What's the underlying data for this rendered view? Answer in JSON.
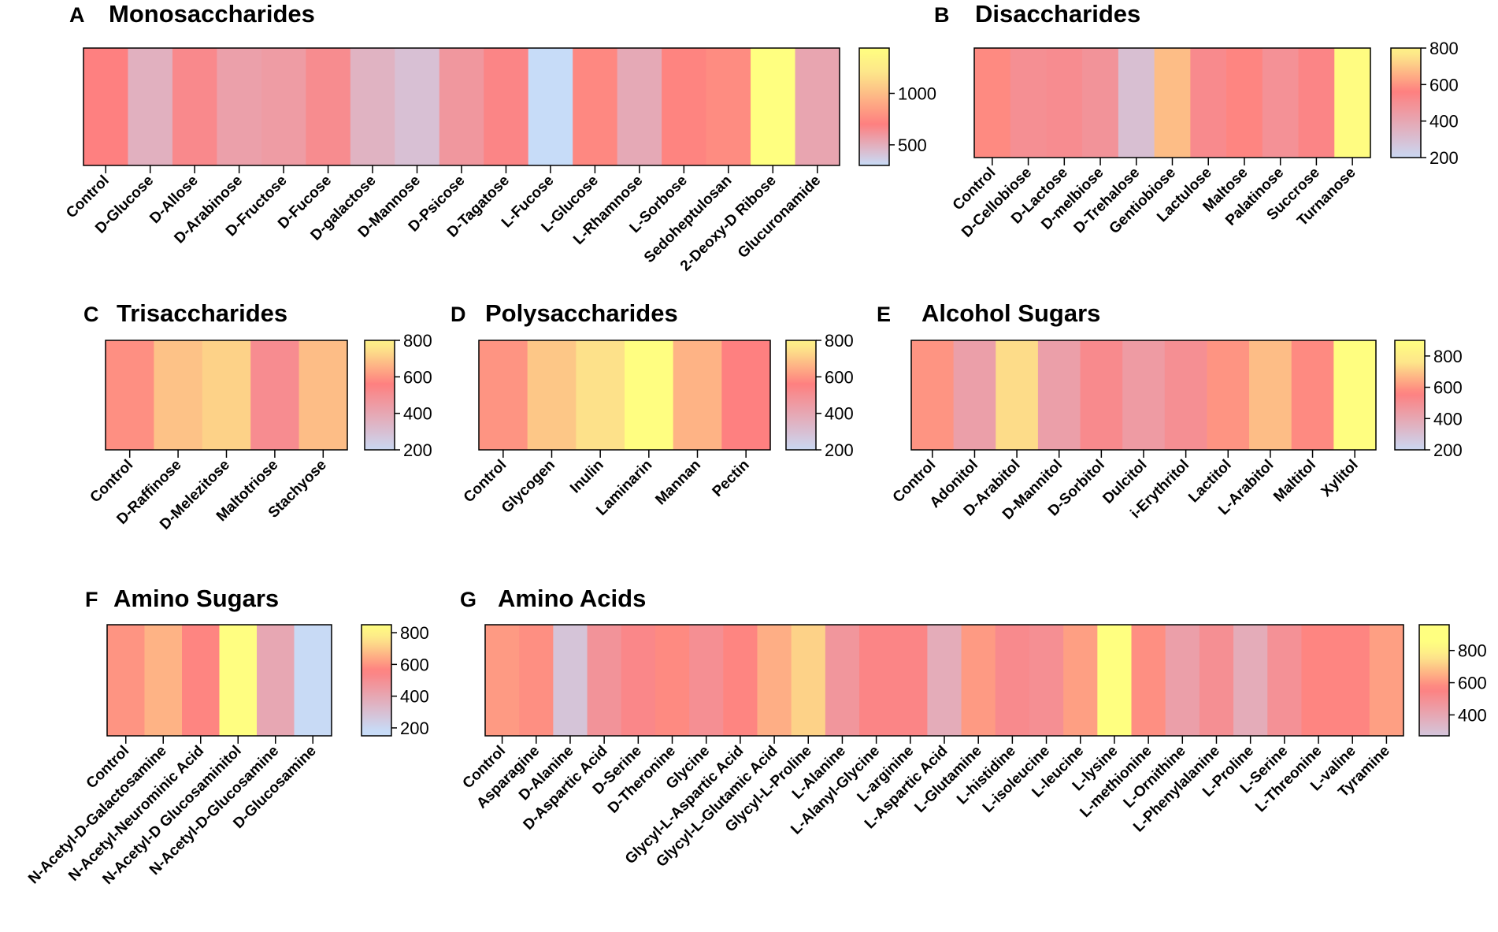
{
  "figure": {
    "panels_count": 7
  },
  "scales": {
    "mono": [
      [
        300,
        "#c7dcf8"
      ],
      [
        700,
        "#fe8080"
      ],
      [
        1200,
        "#fde68a"
      ],
      [
        1440,
        "#ffff80"
      ]
    ],
    "std": [
      [
        180,
        "#c7dcf8"
      ],
      [
        560,
        "#fe8080"
      ],
      [
        760,
        "#fde68a"
      ],
      [
        850,
        "#ffff80"
      ]
    ],
    "std2": [
      [
        180,
        "#c7dcf8"
      ],
      [
        560,
        "#fe8080"
      ],
      [
        760,
        "#fde68a"
      ],
      [
        900,
        "#ffff80"
      ]
    ]
  },
  "chart_data": [
    {
      "id": "A",
      "type": "heatmap",
      "letter": "A",
      "title": "Monosaccharides",
      "scale": "mono",
      "colorbar": {
        "range": [
          300,
          1440
        ],
        "ticks": [
          500,
          1000
        ]
      },
      "categories": [
        "Control",
        "D-Glucose",
        "D-Allose",
        "D-Arabinose",
        "D-Fructose",
        "D-Fucose",
        "D-galactose",
        "D-Mannose",
        "D-Psicose",
        "D-Tagatose",
        "L-Fucose",
        "L-Glucose",
        "L-Rhamnose",
        "L-Sorbose",
        "Sedoheptulosan",
        "2-Deoxy-D Ribose",
        "Glucuronamide"
      ],
      "values": [
        700,
        490,
        660,
        560,
        580,
        650,
        480,
        420,
        600,
        680,
        300,
        740,
        520,
        720,
        760,
        1440,
        540
      ]
    },
    {
      "id": "B",
      "type": "heatmap",
      "letter": "B",
      "title": "Disaccharides",
      "scale": "std",
      "colorbar": {
        "range": [
          200,
          800
        ],
        "ticks": [
          200,
          400,
          600,
          800
        ]
      },
      "categories": [
        "Control",
        "D-Cellobiose",
        "D-Lactose",
        "D-melbiose",
        "D-Trehalose",
        "Gentiobiose",
        "Lactulose",
        "Maltose",
        "Palatinose",
        "Succrose",
        "Turnanose"
      ],
      "values": [
        580,
        500,
        510,
        480,
        300,
        680,
        520,
        570,
        490,
        540,
        840
      ]
    },
    {
      "id": "C",
      "type": "heatmap",
      "letter": "C",
      "title": "Trisaccharides",
      "scale": "std",
      "colorbar": {
        "range": [
          200,
          800
        ],
        "ticks": [
          200,
          400,
          600,
          800
        ]
      },
      "categories": [
        "Control",
        "D-Raffinose",
        "D-Melezitose",
        "Maltotriose",
        "Stachyose"
      ],
      "values": [
        590,
        690,
        720,
        510,
        680
      ]
    },
    {
      "id": "D",
      "type": "heatmap",
      "letter": "D",
      "title": "Polysaccharides",
      "scale": "std",
      "colorbar": {
        "range": [
          200,
          800
        ],
        "ticks": [
          200,
          400,
          600,
          800
        ]
      },
      "categories": [
        "Control",
        "Glycogen",
        "Inulin",
        "Laminarin",
        "Mannan",
        "Pectin"
      ],
      "values": [
        600,
        700,
        750,
        845,
        660,
        560
      ]
    },
    {
      "id": "E",
      "type": "heatmap",
      "letter": "E",
      "title": "Alcohol Sugars",
      "scale": "std2",
      "colorbar": {
        "range": [
          200,
          900
        ],
        "ticks": [
          200,
          400,
          600,
          800
        ]
      },
      "categories": [
        "Control",
        "Adonitol",
        "D-Arabitol",
        "D-Mannitol",
        "D-Sorbitol",
        "Dulcitol",
        "i-Erythritol",
        "Lactitol",
        "L-Arabitol",
        "Maltitol",
        "Xylitol"
      ],
      "values": [
        600,
        430,
        740,
        430,
        520,
        450,
        500,
        600,
        680,
        580,
        895
      ]
    },
    {
      "id": "F",
      "type": "heatmap",
      "letter": "F",
      "title": "Amino Sugars",
      "scale": "std",
      "colorbar": {
        "range": [
          150,
          850
        ],
        "ticks": [
          200,
          400,
          600,
          800
        ]
      },
      "categories": [
        "Control",
        "N-Acetyl-D-Galactosamine",
        "N-Acetyl-Neurominic Acid",
        "N-Acetyl-D Glucosaminitol",
        "N-Acetyl-D-Glucosamine",
        "D-Glucosamine"
      ],
      "values": [
        600,
        660,
        570,
        845,
        400,
        190
      ]
    },
    {
      "id": "G",
      "type": "heatmap",
      "letter": "G",
      "title": "Amino Acids",
      "scale": "std",
      "colorbar": {
        "range": [
          270,
          960
        ],
        "ticks": [
          400,
          600,
          800
        ]
      },
      "categories": [
        "Control",
        "Asparagine",
        "D-Alanine",
        "D-Aspartic Acid",
        "D-Serine",
        "D-Theronine",
        "Glycine",
        "Glycyl-L-Aspartic Acid",
        "Glycyl-L-Glutamic Acid",
        "Glycyl-L-Proline",
        "L-Alanine",
        "L-Alanyl-Glycine",
        "L-arginine",
        "L-Aspartic Acid",
        "L-Glutamine",
        "L-histidine",
        "L-isoleucine",
        "L-leucine",
        "L-lysine",
        "L-methionine",
        "L-Ornithine",
        "L-Phenylalanine",
        "L-Proline",
        "L-Serine",
        "L-Threonine",
        "L-valine",
        "Tyramine"
      ],
      "values": [
        610,
        590,
        280,
        480,
        530,
        580,
        500,
        570,
        650,
        720,
        470,
        540,
        540,
        380,
        610,
        520,
        500,
        620,
        900,
        590,
        430,
        500,
        380,
        490,
        570,
        570,
        620
      ]
    }
  ]
}
